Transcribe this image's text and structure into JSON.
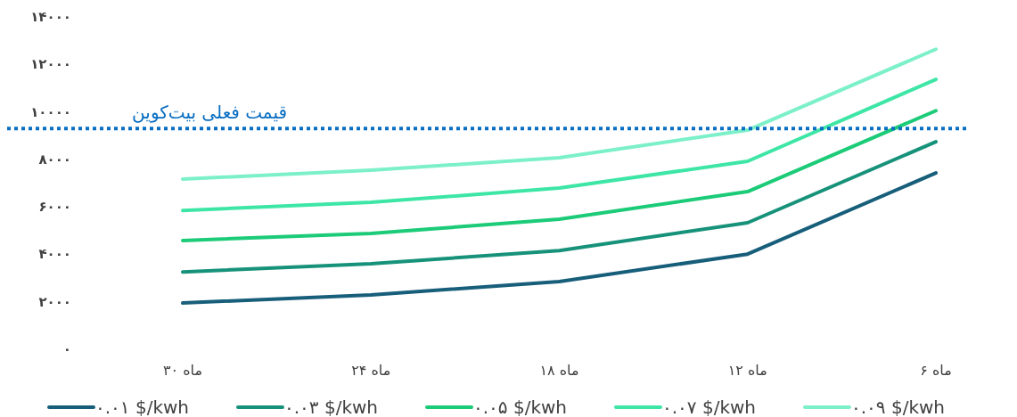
{
  "chart_data": {
    "type": "line",
    "categories": [
      "۳۰ ماه",
      "۲۴ ماه",
      "۱۸ ماه",
      "۱۲ ماه",
      "۶ ماه"
    ],
    "series": [
      {
        "name": "۰.۰۱ $/kwh",
        "color": "#175e7a",
        "values": [
          1950,
          2290,
          2850,
          4010,
          7430
        ]
      },
      {
        "name": "۰.۰۳ $/kwh",
        "color": "#17927a",
        "values": [
          3260,
          3600,
          4160,
          5330,
          8740
        ]
      },
      {
        "name": "۰.۰۵ $/kwh",
        "color": "#1ccb78",
        "values": [
          4580,
          4880,
          5480,
          6640,
          10050
        ]
      },
      {
        "name": "۰.۰۷ $/kwh",
        "color": "#3ee6a6",
        "values": [
          5850,
          6190,
          6790,
          7920,
          11370
        ]
      },
      {
        "name": "۰.۰۹ $/kwh",
        "color": "#7cf0c8",
        "values": [
          7170,
          7540,
          8070,
          9230,
          12640
        ]
      }
    ],
    "ylim": [
      0,
      14000
    ],
    "yticks": [
      {
        "value": 0,
        "label": "۰"
      },
      {
        "value": 2000,
        "label": "۲۰۰۰"
      },
      {
        "value": 4000,
        "label": "۴۰۰۰"
      },
      {
        "value": 6000,
        "label": "۶۰۰۰"
      },
      {
        "value": 8000,
        "label": "۸۰۰۰"
      },
      {
        "value": 10000,
        "label": "۱۰۰۰۰"
      },
      {
        "value": 12000,
        "label": "۱۲۰۰۰"
      },
      {
        "value": 14000,
        "label": "۱۴۰۰۰"
      }
    ],
    "ref_lines": [
      {
        "axis": "y",
        "value": 9300,
        "label": "قیمت فعلی بیت‌کوین",
        "color": "#0a6fc2",
        "line_style": "dotted"
      }
    ],
    "legend": "bottom"
  }
}
